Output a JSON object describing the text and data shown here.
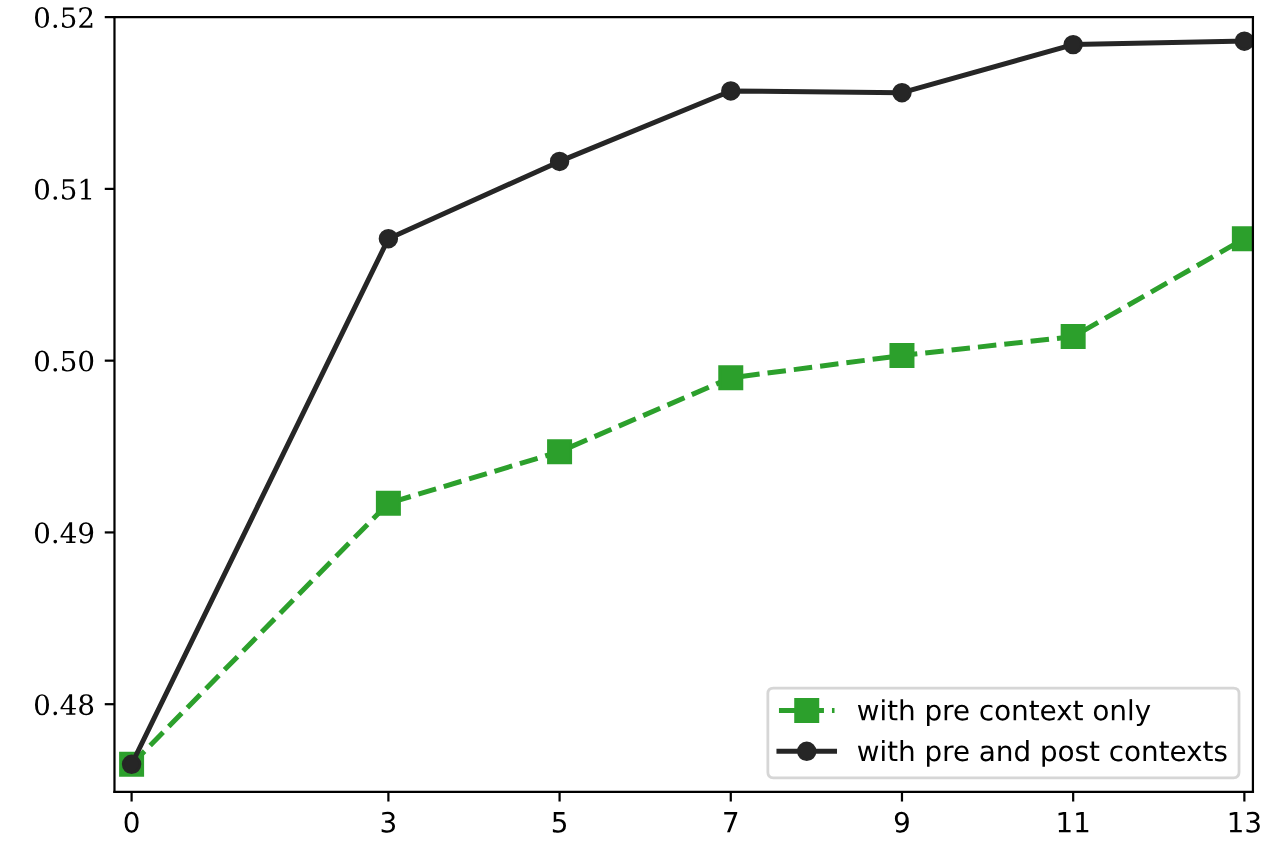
{
  "chart_data": {
    "type": "line",
    "x": [
      0,
      3,
      5,
      7,
      9,
      11,
      13
    ],
    "series": [
      {
        "name": "with pre context only",
        "color": "#2ca02c",
        "values": [
          0.4765,
          0.4917,
          0.4947,
          0.499,
          0.5003,
          0.5014,
          0.5071
        ],
        "marker": "square",
        "line_style": "dashed"
      },
      {
        "name": "with pre and post contexts",
        "color": "#262626",
        "values": [
          0.4765,
          0.5071,
          0.5116,
          0.5157,
          0.5156,
          0.5184,
          0.5186
        ],
        "marker": "circle",
        "line_style": "solid"
      }
    ],
    "xlim": [
      -0.2,
      13.1
    ],
    "xticks": [
      0,
      3,
      5,
      7,
      9,
      11,
      13
    ],
    "ylim": [
      0.4749,
      0.52
    ],
    "yticks": [
      0.48,
      0.49,
      {
        "value": 0.5,
        "label": "0.50"
      },
      0.51,
      0.52
    ],
    "grid": false,
    "legend": "bottom right"
  }
}
